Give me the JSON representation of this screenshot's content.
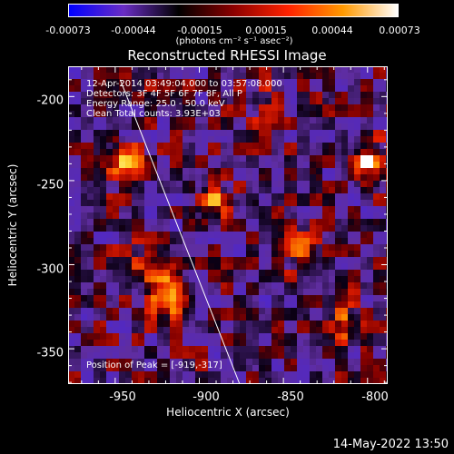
{
  "colorbar": {
    "ticks": [
      "-0.00073",
      "-0.00044",
      "-0.00015",
      "0.00015",
      "0.00044",
      "0.00073"
    ],
    "unit_label": "(photons cm⁻² s⁻¹ asec⁻²)",
    "stops": [
      "#0000ff",
      "#6a2dc4",
      "#000000",
      "#8b0000",
      "#ff2200",
      "#ff9900",
      "#ffffff"
    ]
  },
  "chart_data": {
    "type": "heatmap",
    "title": "Reconstructed RHESSI Image",
    "xlabel": "Heliocentric X (arcsec)",
    "ylabel": "Heliocentric Y (arcsec)",
    "xlim": [
      -978,
      -788
    ],
    "ylim": [
      -371,
      -182
    ],
    "xticks": [
      "-950",
      "-900",
      "-850",
      "-800"
    ],
    "yticks": [
      "-200",
      "-250",
      "-300",
      "-350"
    ],
    "bright_sources": [
      {
        "x": -919,
        "y": -317,
        "peak": 0.00073
      },
      {
        "x": -945,
        "y": -238,
        "peak": 0.00044
      },
      {
        "x": -892,
        "y": -262,
        "peak": 0.00044
      },
      {
        "x": -800,
        "y": -240,
        "peak": 0.0006
      },
      {
        "x": -840,
        "y": -290,
        "peak": 0.00044
      },
      {
        "x": -860,
        "y": -205,
        "peak": 0.0003
      },
      {
        "x": -812,
        "y": -335,
        "peak": 0.0003
      },
      {
        "x": -940,
        "y": -302,
        "peak": 0.00025
      }
    ],
    "limb_line": {
      "x": [
        -947,
        -876
      ],
      "y": [
        -190,
        -371
      ]
    },
    "annotations": {
      "time": "12-Apr-2014 03:49:04.000 to 03:57:08.000",
      "detectors": "Detectors: 3F 4F 5F 6F 7F 8F, All P",
      "energy": "Energy Range: 25.0 - 50.0 keV",
      "clean": "Clean     Total counts: 3.93E+03",
      "peak": "Position of Peak = [-919,-317]"
    }
  },
  "timestamp": "14-May-2022 13:50"
}
